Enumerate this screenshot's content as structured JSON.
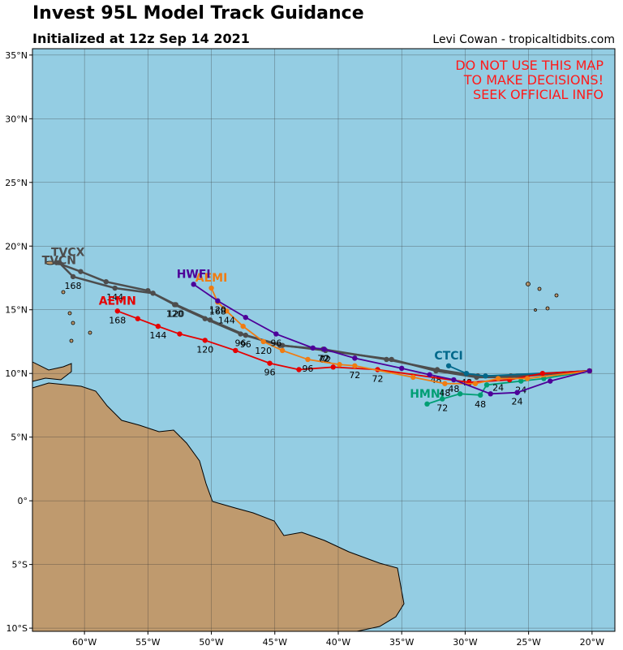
{
  "map": {
    "title": "Invest 95L Model Track Guidance",
    "subtitle": "Initialized at 12z Sep 14 2021",
    "credit": "Levi Cowan - tropicaltidbits.com",
    "warning": [
      "DO NOT USE THIS MAP",
      "TO MAKE DECISIONS!",
      "SEEK OFFICIAL INFO"
    ],
    "lon_range": [
      -64.1,
      -18.2
    ],
    "lat_range": [
      -10.25,
      35.5
    ],
    "lon_ticks": [
      {
        "value": -60,
        "label": "60°W"
      },
      {
        "value": -55,
        "label": "55°W"
      },
      {
        "value": -50,
        "label": "50°W"
      },
      {
        "value": -45,
        "label": "45°W"
      },
      {
        "value": -40,
        "label": "40°W"
      },
      {
        "value": -35,
        "label": "35°W"
      },
      {
        "value": -30,
        "label": "30°W"
      },
      {
        "value": -25,
        "label": "25°W"
      },
      {
        "value": -20,
        "label": "20°W"
      }
    ],
    "lat_ticks": [
      {
        "value": 35,
        "label": "35°N"
      },
      {
        "value": 30,
        "label": "30°N"
      },
      {
        "value": 25,
        "label": "25°N"
      },
      {
        "value": 20,
        "label": "20°N"
      },
      {
        "value": 15,
        "label": "15°N"
      },
      {
        "value": 10,
        "label": "10°N"
      },
      {
        "value": 5,
        "label": "5°N"
      },
      {
        "value": 0,
        "label": "0°"
      },
      {
        "value": -5,
        "label": "5°S"
      },
      {
        "value": -10,
        "label": "10°S"
      }
    ],
    "tracks": [
      {
        "name": "TVCN",
        "color": "#4d4d4d",
        "lon": [
          -20.2,
          -26.5,
          -29.1,
          -32.3,
          -35.8,
          -41.0,
          -44.4,
          -47.3,
          -50.1,
          -52.8,
          -54.6,
          -57.6,
          -60.9,
          -62.0
        ],
        "lat": [
          10.2,
          9.7,
          9.7,
          10.2,
          11.1,
          11.8,
          12.2,
          13.0,
          14.2,
          15.4,
          16.3,
          16.7,
          17.6,
          18.7
        ],
        "hours": [
          null,
          null,
          null,
          48,
          null,
          72,
          null,
          96,
          null,
          120,
          null,
          144,
          168,
          null
        ]
      },
      {
        "name": "TVCX",
        "color": "#4d4d4d",
        "lon": [
          -20.2,
          -26.4,
          -29.0,
          -32.2,
          -36.2,
          -41.2,
          -44.6,
          -47.7,
          -50.5,
          -52.9,
          -55.0,
          -58.3,
          -60.3,
          -62.2
        ],
        "lat": [
          10.2,
          9.8,
          9.8,
          10.3,
          11.1,
          11.9,
          12.2,
          13.1,
          14.3,
          15.4,
          16.5,
          17.2,
          18.0,
          18.7
        ],
        "hours": [
          null,
          null,
          null,
          null,
          null,
          72,
          null,
          96,
          null,
          120,
          null,
          null,
          null,
          null
        ]
      },
      {
        "name": "CTCI",
        "color": "#00688b",
        "lon": [
          -20.2,
          -28.4,
          -29.9,
          -31.3
        ],
        "lat": [
          10.2,
          9.8,
          10.0,
          10.6
        ],
        "hours": [
          null,
          null,
          48,
          null
        ]
      },
      {
        "name": "HMNI",
        "color": "#009e73",
        "lon": [
          -20.2,
          -23.8,
          -25.6,
          -28.3,
          -28.8,
          -30.4,
          -31.8,
          -33.0
        ],
        "lat": [
          10.2,
          9.6,
          9.4,
          9.1,
          8.3,
          8.4,
          8.0,
          7.6
        ],
        "hours": [
          null,
          null,
          24,
          null,
          48,
          null,
          72,
          null
        ]
      },
      {
        "name": "AEMN",
        "color": "#e60000",
        "lon": [
          -20.2,
          -23.9,
          -26.5,
          -29.7,
          -36.9,
          -40.4,
          -43.1,
          -45.4,
          -48.1,
          -50.5,
          -52.5,
          -54.2,
          -55.8,
          -57.4
        ],
        "lat": [
          10.2,
          10.0,
          9.5,
          9.3,
          10.3,
          10.5,
          10.3,
          10.8,
          11.8,
          12.6,
          13.1,
          13.7,
          14.3,
          14.9
        ],
        "hours": [
          null,
          null,
          null,
          null,
          72,
          null,
          null,
          96,
          null,
          120,
          null,
          144,
          null,
          168
        ]
      },
      {
        "name": "AEMI",
        "color": "#f07c12",
        "lon": [
          -20.2,
          -25.1,
          -27.4,
          -29.2,
          -31.6,
          -34.1,
          -38.7,
          -39.9,
          -42.4,
          -44.4,
          -45.9,
          -47.5,
          -48.8,
          -49.5,
          -50.0
        ],
        "lat": [
          10.2,
          9.6,
          9.6,
          9.2,
          9.2,
          9.7,
          10.6,
          10.7,
          11.1,
          11.8,
          12.5,
          13.7,
          14.9,
          15.6,
          16.7
        ],
        "hours": [
          null,
          null,
          24,
          null,
          48,
          null,
          72,
          null,
          96,
          null,
          120,
          null,
          144,
          168,
          null
        ]
      },
      {
        "name": "HWFI",
        "color": "#4d0099",
        "lon": [
          -20.2,
          -23.3,
          -25.9,
          -28.0,
          -30.9,
          -32.8,
          -35.0,
          -38.7,
          -41.1,
          -42.0,
          -44.9,
          -47.3,
          -49.5,
          -51.4
        ],
        "lat": [
          10.2,
          9.4,
          8.5,
          8.4,
          9.5,
          9.9,
          10.4,
          11.2,
          11.9,
          12.0,
          13.1,
          14.4,
          15.7,
          17.0
        ],
        "hours": [
          null,
          null,
          24,
          null,
          48,
          null,
          null,
          null,
          72,
          null,
          96,
          null,
          120,
          null
        ]
      }
    ]
  }
}
